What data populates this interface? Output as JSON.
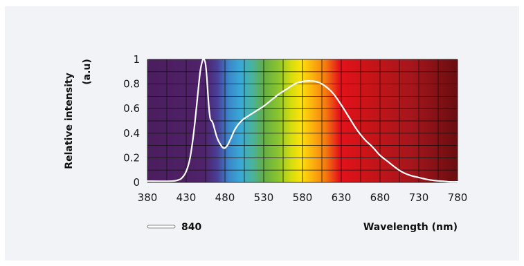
{
  "colors": {
    "page_background": "#ffffff",
    "panel_background": "#f1f3f7",
    "grid": "#111111",
    "curve": "#ffffff",
    "spectrum_stops": [
      [
        "380",
        "#4b1e5e"
      ],
      [
        "430",
        "#4e2065"
      ],
      [
        "455",
        "#4f236c"
      ],
      [
        "470",
        "#4a3f97"
      ],
      [
        "485",
        "#3b86c9"
      ],
      [
        "500",
        "#39a9d6"
      ],
      [
        "515",
        "#49b39f"
      ],
      [
        "530",
        "#62ad45"
      ],
      [
        "550",
        "#8ec62c"
      ],
      [
        "565",
        "#d4dc0f"
      ],
      [
        "578",
        "#fbe20a"
      ],
      [
        "592",
        "#fcb40e"
      ],
      [
        "610",
        "#f47a10"
      ],
      [
        "628",
        "#e4111a"
      ],
      [
        "660",
        "#cc1418"
      ],
      [
        "720",
        "#a5161c"
      ],
      [
        "780",
        "#6a0d10"
      ]
    ]
  },
  "chart_data": {
    "type": "line",
    "xlabel": "Wavelength (nm)",
    "ylabel_line1": "Relative intensity",
    "ylabel_line2": "(a.u)",
    "xlim": [
      380,
      780
    ],
    "ylim": [
      0,
      1
    ],
    "x_ticks": [
      380,
      430,
      480,
      530,
      580,
      630,
      680,
      730,
      780
    ],
    "y_ticks": [
      {
        "value": 0,
        "label": "0"
      },
      {
        "value": 0.2,
        "label": "0.2"
      },
      {
        "value": 0.4,
        "label": "0.4"
      },
      {
        "value": 0.6,
        "label": "0.6"
      },
      {
        "value": 0.8,
        "label": "0.8"
      },
      {
        "value": 1,
        "label": "1"
      }
    ],
    "x_minor_gridlines": [
      405,
      455,
      505,
      555,
      605,
      655,
      705,
      755
    ],
    "y_minor_gridlines": [
      0.1,
      0.3,
      0.5,
      0.7,
      0.9
    ],
    "grid": true,
    "legend_position": "bottom-left",
    "series": [
      {
        "name": "840",
        "x": [
          380,
          410,
          420,
          425,
          430,
          435,
          440,
          445,
          448,
          451,
          453,
          455,
          457,
          459,
          461,
          463,
          465,
          470,
          475,
          478,
          480,
          483,
          487,
          492,
          497,
          503,
          510,
          520,
          530,
          540,
          550,
          560,
          570,
          580,
          590,
          600,
          610,
          620,
          630,
          640,
          650,
          660,
          670,
          680,
          690,
          700,
          710,
          720,
          730,
          740,
          750,
          760,
          770,
          780
        ],
        "y": [
          0.01,
          0.01,
          0.02,
          0.04,
          0.09,
          0.2,
          0.42,
          0.72,
          0.9,
          0.99,
          1.0,
          0.96,
          0.82,
          0.63,
          0.52,
          0.5,
          0.47,
          0.36,
          0.3,
          0.28,
          0.28,
          0.3,
          0.35,
          0.42,
          0.47,
          0.51,
          0.54,
          0.58,
          0.62,
          0.67,
          0.72,
          0.76,
          0.8,
          0.82,
          0.825,
          0.815,
          0.78,
          0.72,
          0.63,
          0.53,
          0.43,
          0.35,
          0.29,
          0.22,
          0.17,
          0.12,
          0.08,
          0.055,
          0.04,
          0.025,
          0.015,
          0.01,
          0.005,
          0.005
        ]
      }
    ]
  }
}
